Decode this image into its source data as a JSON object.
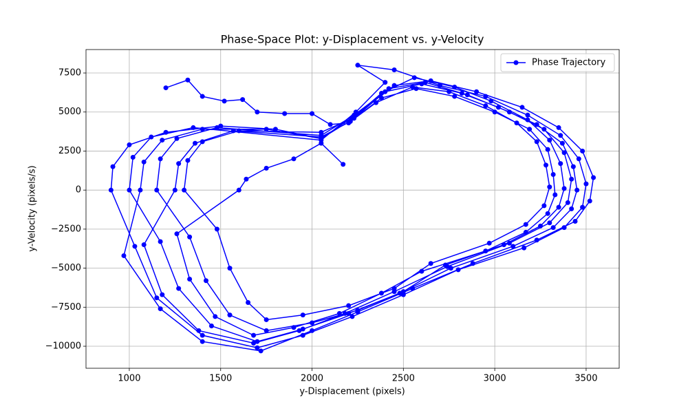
{
  "chart_data": {
    "type": "line",
    "title": "Phase-Space Plot: y-Displacement vs. y-Velocity",
    "xlabel": "y-Displacement (pixels)",
    "ylabel": "y-Velocity (pixels/s)",
    "x": [
      1200,
      1320,
      1400,
      1520,
      1620,
      1700,
      1850,
      2000,
      2100,
      2200,
      2350,
      2550,
      2750,
      2950,
      3120,
      3230,
      3280,
      3300,
      3270,
      3170,
      2970,
      2650,
      2450,
      2200,
      1950,
      1750,
      1650,
      1550,
      1480,
      1300,
      1320,
      1400,
      1600,
      2050,
      2220,
      2380,
      2560,
      2780,
      2980,
      3180,
      3300,
      3360,
      3380,
      3350,
      3250,
      3050,
      2730,
      2500,
      2250,
      2000,
      1750,
      1550,
      1420,
      1330,
      1150,
      1170,
      1260,
      1480,
      2050,
      2230,
      2400,
      2600,
      2820,
      3020,
      3230,
      3370,
      3430,
      3450,
      3420,
      3320,
      3100,
      2760,
      2480,
      2200,
      1950,
      1700,
      1450,
      1270,
      1170,
      1000,
      1020,
      1120,
      1350,
      2050,
      2240,
      2400,
      2250,
      2450,
      2700,
      2950,
      3180,
      3360,
      3460,
      3500,
      3480,
      3380,
      3160,
      2800,
      2500,
      2220,
      1950,
      1700,
      1400,
      1150,
      1030,
      900,
      910,
      1000,
      1200,
      1500,
      1800,
      2050,
      2250,
      2450,
      2650,
      2900,
      3150,
      3350,
      3480,
      3540,
      3520,
      3440,
      3230,
      2880,
      2550,
      2250,
      2000,
      1720,
      1400,
      1170,
      970,
      1060,
      1080,
      1180,
      1400,
      1750,
      2050,
      2230,
      2420,
      2620,
      2850,
      3080,
      3270,
      3380,
      3420,
      3400,
      3300,
      3080,
      2740,
      2450,
      2180,
      1930,
      1680,
      1380,
      1180,
      1080,
      1250,
      1270,
      1360,
      1570,
      2050,
      2210,
      2380,
      2570,
      2780,
      3000,
      3190,
      3290,
      3320,
      3330,
      3290,
      3170,
      2950,
      2600,
      2380,
      2150,
      1900,
      1680,
      1470,
      1330,
      1260,
      1600,
      1640,
      1750,
      1900,
      2050,
      2170
    ],
    "series": [
      {
        "name": "Phase Trajectory",
        "color": "#0000ff",
        "values": [
          6550,
          7050,
          6000,
          5700,
          5800,
          5000,
          4900,
          4900,
          4200,
          4300,
          5600,
          6600,
          6300,
          5400,
          4300,
          3100,
          1600,
          200,
          -1000,
          -2200,
          -3400,
          -4700,
          -6300,
          -7400,
          -8000,
          -8300,
          -7200,
          -5000,
          -2500,
          0,
          1900,
          3100,
          3800,
          3700,
          4600,
          6200,
          7200,
          6600,
          5700,
          4500,
          3200,
          1700,
          100,
          -1100,
          -2300,
          -3500,
          -4800,
          -6500,
          -7700,
          -8500,
          -9000,
          -8000,
          -5800,
          -3000,
          0,
          2000,
          3300,
          4000,
          3500,
          4800,
          6300,
          6800,
          6200,
          5300,
          4200,
          3000,
          1500,
          0,
          -1200,
          -2400,
          -3600,
          -5000,
          -6600,
          -7900,
          -8900,
          -9700,
          -8700,
          -6300,
          -3300,
          0,
          2100,
          3400,
          4000,
          3200,
          5000,
          6900,
          8000,
          7700,
          6700,
          6000,
          4800,
          3500,
          2000,
          400,
          -1100,
          -2400,
          -3700,
          -5100,
          -6700,
          -8100,
          -9300,
          -10100,
          -9300,
          -6900,
          -3600,
          0,
          1500,
          2900,
          3700,
          4100,
          3900,
          3300,
          4900,
          6700,
          7000,
          6300,
          5300,
          4000,
          2500,
          800,
          -700,
          -2000,
          -3200,
          -4700,
          -6300,
          -7800,
          -9000,
          -10300,
          -9700,
          -7600,
          -4200,
          0,
          1800,
          3200,
          3900,
          3900,
          3300,
          4600,
          6500,
          6900,
          6100,
          5000,
          3900,
          2400,
          700,
          -800,
          -2100,
          -3400,
          -4900,
          -6500,
          -7900,
          -9000,
          -9800,
          -9000,
          -6700,
          -3500,
          0,
          1700,
          3000,
          3800,
          3400,
          4400,
          5900,
          6500,
          6000,
          5000,
          3900,
          2600,
          1000,
          -300,
          -1500,
          -2700,
          -3900,
          -5200,
          -6600,
          -7900,
          -8800,
          -9300,
          -8100,
          -5700,
          -2800,
          0,
          700,
          1400,
          2000,
          3000,
          1650
        ]
      }
    ],
    "xlim": [
      763,
      3681
    ],
    "ylim": [
      -11410,
      9000
    ],
    "xticks": [
      1000,
      1500,
      2000,
      2500,
      3000,
      3500
    ],
    "yticks": [
      {
        "value": -10000,
        "label": "−10000"
      },
      {
        "value": -7500,
        "label": "−7500"
      },
      {
        "value": -5000,
        "label": "−5000"
      },
      {
        "value": -2500,
        "label": "−2500"
      },
      0,
      2500,
      5000,
      7500
    ],
    "grid": true,
    "legend": "upper right"
  }
}
